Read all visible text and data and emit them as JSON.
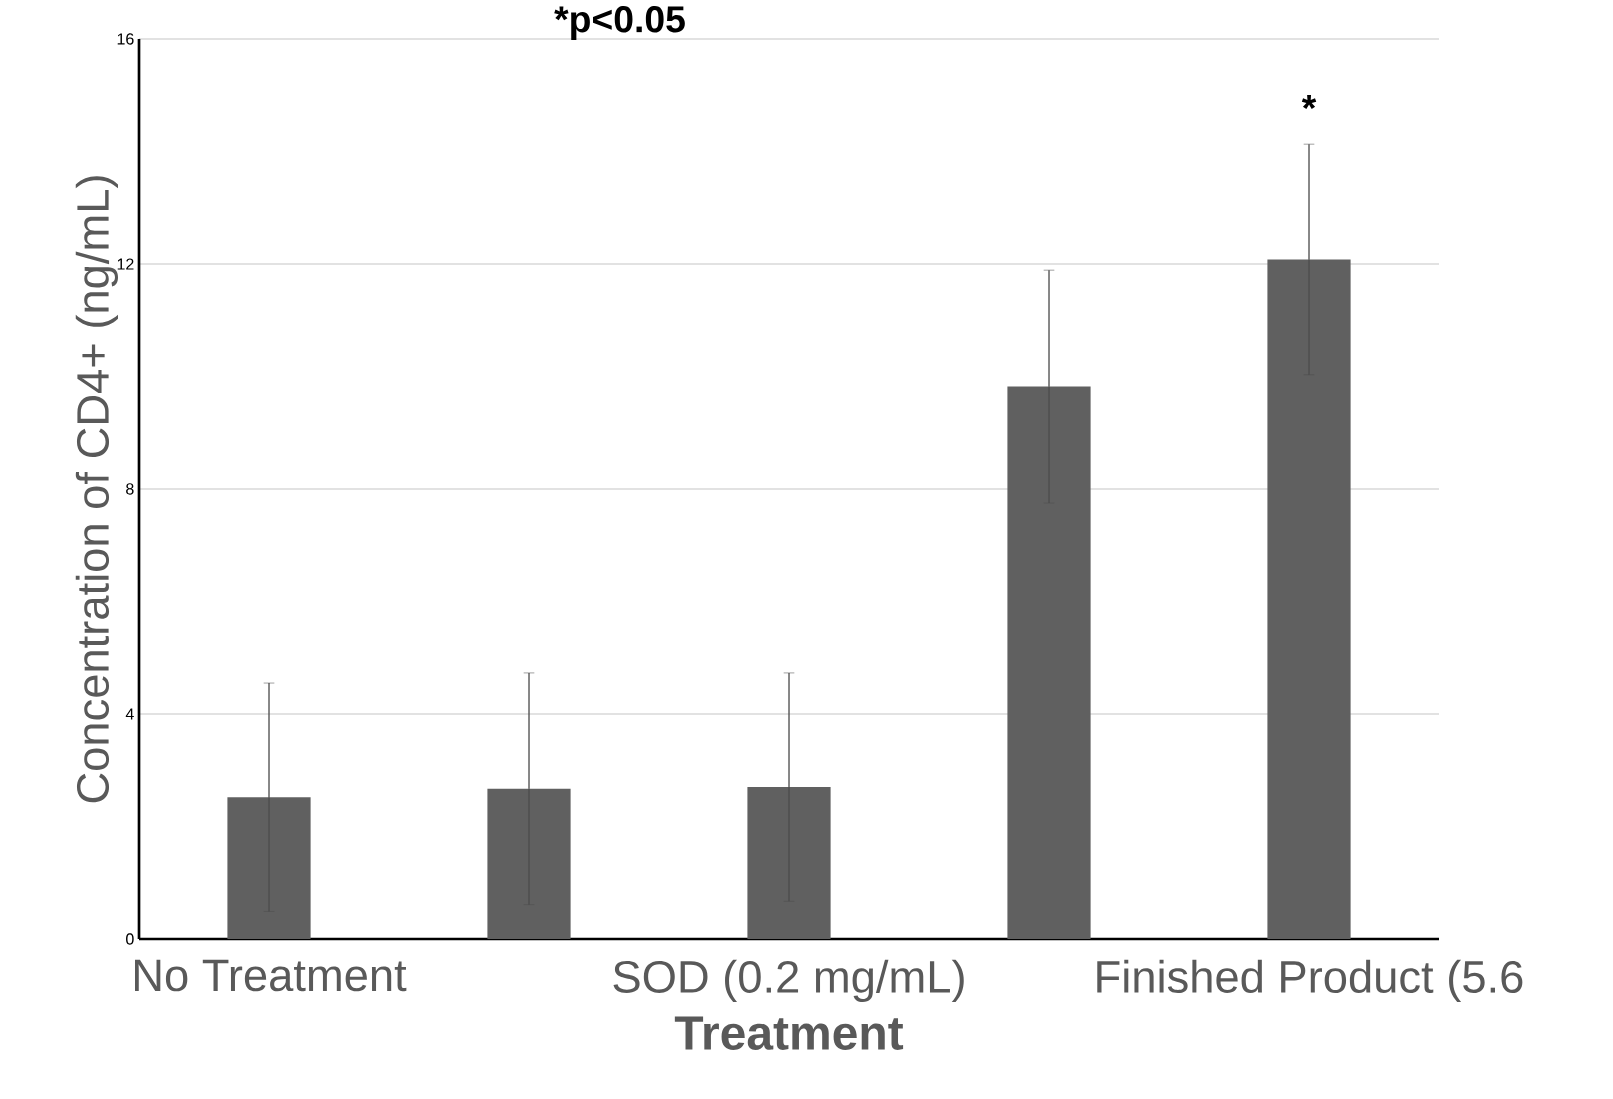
{
  "chart_data": {
    "type": "bar",
    "title": "*p<0.05",
    "xlabel": "Treatment",
    "ylabel": "Concentration of CD4+ (ng/mL)",
    "categories": [
      "No Treatment",
      null,
      "SOD (0.2 mg/mL)",
      null,
      "Finished Product (5.6"
    ],
    "values": [
      2.52,
      2.67,
      2.7,
      9.82,
      12.08
    ],
    "errors": [
      2.03,
      2.06,
      2.03,
      2.07,
      2.05
    ],
    "color": "#606060",
    "ylim": [
      0,
      16
    ],
    "yticks": [
      0,
      4,
      8,
      12,
      16
    ],
    "grid": "y",
    "annotations": [
      "*"
    ]
  }
}
